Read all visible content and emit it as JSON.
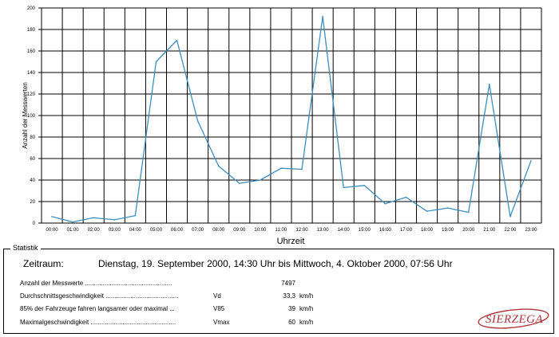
{
  "chart_data": {
    "type": "line",
    "title": "",
    "xlabel": "Uhrzeit",
    "ylabel": "Anzahl der Messwerten",
    "ylim": [
      0,
      200
    ],
    "yticks": [
      0,
      20,
      40,
      60,
      80,
      100,
      120,
      140,
      160,
      180,
      200
    ],
    "grid": true,
    "categories": [
      "00:00",
      "01:00",
      "02:00",
      "03:00",
      "04:00",
      "05:00",
      "06:00",
      "07:00",
      "08:00",
      "09:00",
      "10:00",
      "11:00",
      "12:00",
      "13:00",
      "14:00",
      "15:00",
      "16:00",
      "17:00",
      "18:00",
      "19:00",
      "20:00",
      "21:00",
      "22:00",
      "23:00"
    ],
    "series": [
      {
        "values": [
          6,
          1,
          5,
          3,
          7,
          150,
          170,
          95,
          53,
          37,
          40,
          51,
          50,
          192,
          33,
          35,
          18,
          24,
          11,
          14,
          10,
          129,
          6,
          58
        ]
      }
    ],
    "line_color": "#3b8fbe"
  },
  "statistik": {
    "legend": "Statistik",
    "zeitraum_label": "Zeitraum:",
    "zeitraum_value": "Dienstag, 19. September 2000, 14:30 Uhr bis Mittwoch, 4. Oktober 2000, 07:56 Uhr",
    "rows": [
      {
        "label": "Anzahl der Messwerte .................................................",
        "symbol": "",
        "value": "7497",
        "unit": ""
      },
      {
        "label": "Durchschnittsgeschwindigkeit .........................................",
        "symbol": "Vd",
        "value": "33,3",
        "unit": "km/h"
      },
      {
        "label": "85% der Fahrzeuge fahren langsamer oder maximal ...",
        "symbol": "V85",
        "value": "39",
        "unit": "km/h"
      },
      {
        "label": "Maximalgeschwindigkeit ................................................",
        "symbol": "Vmax",
        "value": "60",
        "unit": "km/h"
      }
    ]
  },
  "logo": {
    "text": "SIERZEGA",
    "color": "#b0353a"
  }
}
